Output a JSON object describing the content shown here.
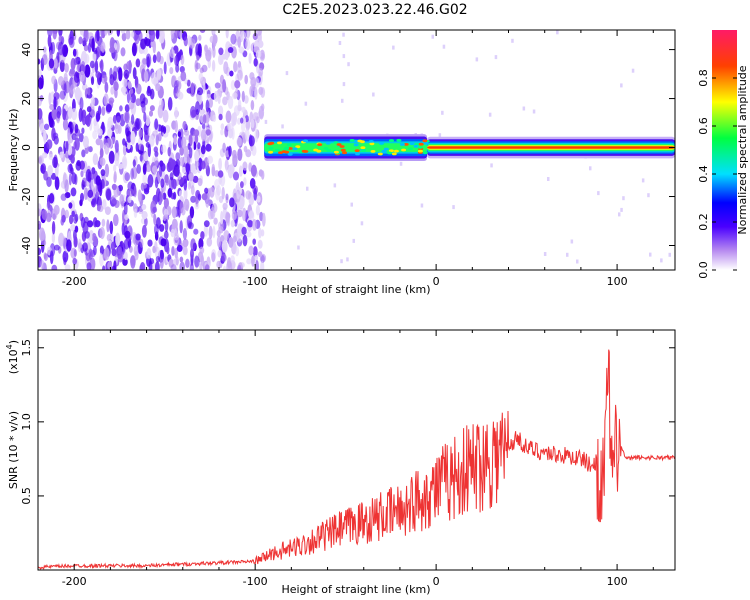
{
  "title": "C2E5.2023.023.22.46.G02",
  "chart_data": [
    {
      "type": "heatmap",
      "title": "C2E5.2023.023.22.46.G02",
      "xlabel": "Height of straight line (km)",
      "ylabel": "Frequency (Hz)",
      "xlim": [
        -220,
        132
      ],
      "ylim": [
        -50,
        48
      ],
      "x_ticks": [
        "-200",
        "-100",
        "0",
        "100"
      ],
      "x_tick_values": [
        -200,
        -100,
        0,
        100
      ],
      "y_ticks": [
        "-40",
        "-20",
        "0",
        "20",
        "40"
      ],
      "y_tick_values": [
        -40,
        -20,
        0,
        20,
        40
      ],
      "colorbar": {
        "label": "Normalized spectral amplitude",
        "range": [
          0,
          1
        ],
        "ticks": [
          "0.0",
          "0.2",
          "0.4",
          "0.6",
          "0.8"
        ],
        "tick_values": [
          0.0,
          0.2,
          0.4,
          0.6,
          0.8
        ]
      },
      "regions": [
        {
          "x": [
            -220,
            -95
          ],
          "freq": [
            -50,
            48
          ],
          "amplitude": 0.12,
          "description_values": "broadband noise"
        },
        {
          "x": [
            -95,
            -5
          ],
          "freq": [
            -5,
            5
          ],
          "amplitude": 0.45
        },
        {
          "x": [
            -5,
            132
          ],
          "freq": [
            -2,
            2
          ],
          "amplitude": 0.85
        }
      ]
    },
    {
      "type": "line",
      "xlabel": "Height of straight line (km)",
      "ylabel": "SNR (10 * v/v)",
      "y_multiplier": "(x10",
      "y_multiplier_exp": "4",
      "y_multiplier_close": ")",
      "xlim": [
        -220,
        132
      ],
      "ylim": [
        0,
        1.62
      ],
      "x_ticks": [
        "-200",
        "-100",
        "0",
        "100"
      ],
      "x_tick_values": [
        -200,
        -100,
        0,
        100
      ],
      "y_ticks": [
        "0.5",
        "1.0",
        "1.5"
      ],
      "y_tick_values": [
        0.5,
        1.0,
        1.5
      ],
      "color": "#ee3333",
      "series": [
        {
          "x": [
            -220,
            -200,
            -180,
            -160,
            -140,
            -120,
            -100,
            -90,
            -80,
            -70,
            -60,
            -50,
            -40,
            -30,
            -20,
            -10,
            0,
            10,
            20,
            30,
            40,
            45,
            50,
            60,
            70,
            80,
            85,
            90,
            93,
            95,
            97,
            100,
            105,
            110,
            120,
            132
          ],
          "values": [
            0.02,
            0.03,
            0.03,
            0.03,
            0.04,
            0.05,
            0.06,
            0.12,
            0.15,
            0.2,
            0.25,
            0.3,
            0.34,
            0.38,
            0.42,
            0.5,
            0.58,
            0.66,
            0.73,
            0.8,
            0.84,
            0.9,
            0.83,
            0.8,
            0.78,
            0.76,
            0.72,
            0.7,
            0.6,
            1.5,
            0.6,
            0.9,
            0.75,
            0.76,
            0.76,
            0.76
          ]
        }
      ]
    }
  ]
}
